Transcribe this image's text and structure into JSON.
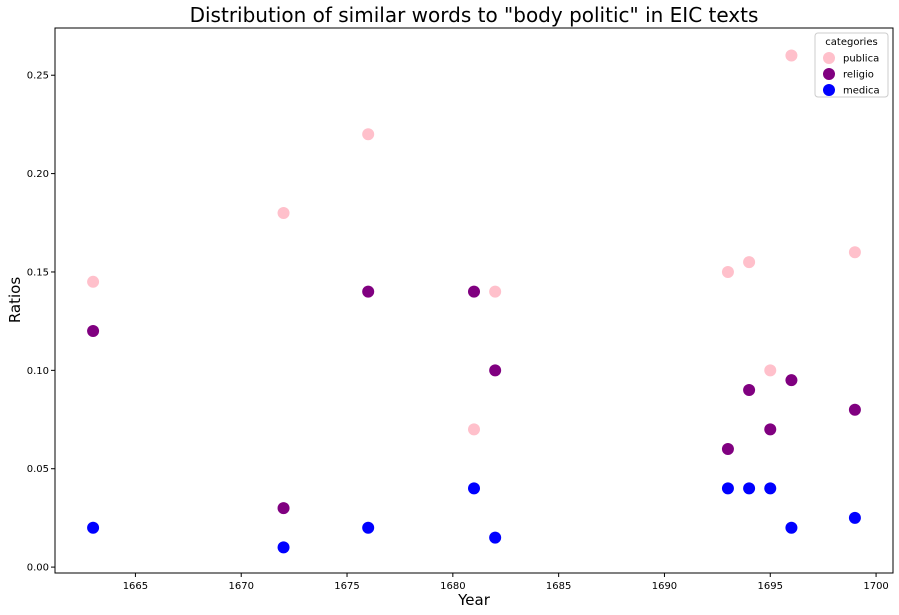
{
  "chart_data": {
    "type": "scatter",
    "title": "Distribution of similar words to \"body politic\" in EIC texts",
    "xlabel": "Year",
    "ylabel": "Ratios",
    "xlim": [
      1661.2,
      1700.8
    ],
    "ylim": [
      -0.003,
      0.274
    ],
    "x_ticks": [
      1665,
      1670,
      1675,
      1680,
      1685,
      1690,
      1695,
      1700
    ],
    "y_ticks": [
      0.0,
      0.05,
      0.1,
      0.15,
      0.2,
      0.25
    ],
    "y_tick_labels": [
      "0.00",
      "0.05",
      "0.10",
      "0.15",
      "0.20",
      "0.25"
    ],
    "grid": false,
    "legend": {
      "title": "categories",
      "placement": "top-right"
    },
    "series": [
      {
        "name": "publica",
        "color": "#ffc0cb",
        "x": [
          1663,
          1672,
          1676,
          1681,
          1682,
          1693,
          1694,
          1695,
          1696,
          1699
        ],
        "y": [
          0.145,
          0.18,
          0.22,
          0.07,
          0.14,
          0.15,
          0.155,
          0.1,
          0.26,
          0.16
        ]
      },
      {
        "name": "religio",
        "color": "#800080",
        "x": [
          1663,
          1672,
          1676,
          1681,
          1682,
          1693,
          1694,
          1695,
          1696,
          1699
        ],
        "y": [
          0.12,
          0.03,
          0.14,
          0.14,
          0.1,
          0.06,
          0.09,
          0.07,
          0.095,
          0.08
        ]
      },
      {
        "name": "medica",
        "color": "#0000ff",
        "x": [
          1663,
          1672,
          1676,
          1681,
          1682,
          1693,
          1694,
          1695,
          1696,
          1699
        ],
        "y": [
          0.02,
          0.01,
          0.02,
          0.04,
          0.015,
          0.04,
          0.04,
          0.04,
          0.02,
          0.025
        ]
      }
    ]
  }
}
